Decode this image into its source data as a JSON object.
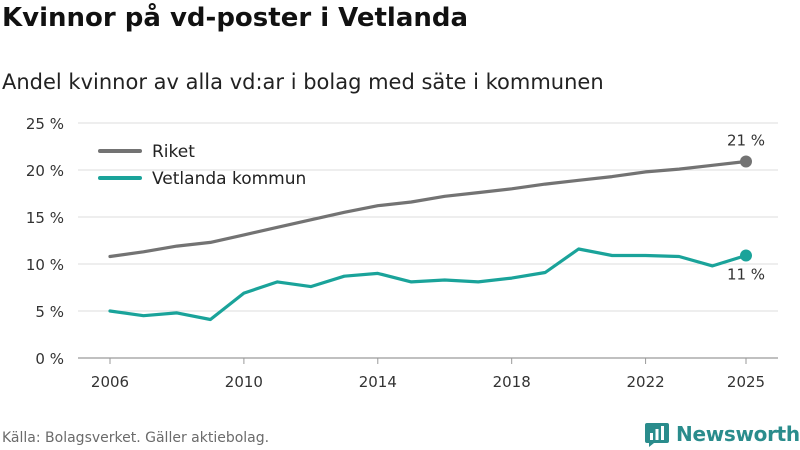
{
  "title": "Kvinnor på vd-poster i Vetlanda",
  "subtitle": "Andel kvinnor av alla vd:ar i bolag med säte i kommunen",
  "source": "Källa: Bolagsverket. Gäller aktiebolag.",
  "brand": {
    "name": "Newsworthy",
    "icon": "newsworthy-logo-icon",
    "color": "#2a8c8c"
  },
  "chart_data": {
    "type": "line",
    "title": "Kvinnor på vd-poster i Vetlanda",
    "xlabel": "",
    "ylabel": "",
    "xlim": [
      2006,
      2025
    ],
    "ylim": [
      0,
      25
    ],
    "y_ticks": [
      0,
      5,
      10,
      15,
      20,
      25
    ],
    "y_tick_labels": [
      "0 %",
      "5 %",
      "10 %",
      "15 %",
      "20 %",
      "25 %"
    ],
    "x_ticks": [
      2006,
      2010,
      2014,
      2018,
      2022,
      2025
    ],
    "x_tick_labels": [
      "2006",
      "2010",
      "2014",
      "2018",
      "2022",
      "2025"
    ],
    "grid": true,
    "legend_position": "top-left",
    "x": [
      2006,
      2007,
      2008,
      2009,
      2010,
      2011,
      2012,
      2013,
      2014,
      2015,
      2016,
      2017,
      2018,
      2019,
      2020,
      2021,
      2022,
      2023,
      2024,
      2025
    ],
    "series": [
      {
        "name": "Riket",
        "color": "#737373",
        "values": [
          10.8,
          11.3,
          11.9,
          12.3,
          13.1,
          13.9,
          14.7,
          15.5,
          16.2,
          16.6,
          17.2,
          17.6,
          18.0,
          18.5,
          18.9,
          19.3,
          19.8,
          20.1,
          20.5,
          20.9
        ],
        "end_label": "21 %"
      },
      {
        "name": "Vetlanda kommun",
        "color": "#1aa39a",
        "values": [
          5.0,
          4.5,
          4.8,
          4.1,
          6.9,
          8.1,
          7.6,
          8.7,
          9.0,
          8.1,
          8.3,
          8.1,
          8.5,
          9.1,
          11.6,
          10.9,
          10.9,
          10.8,
          9.8,
          10.9
        ],
        "end_label": "11 %"
      }
    ]
  }
}
